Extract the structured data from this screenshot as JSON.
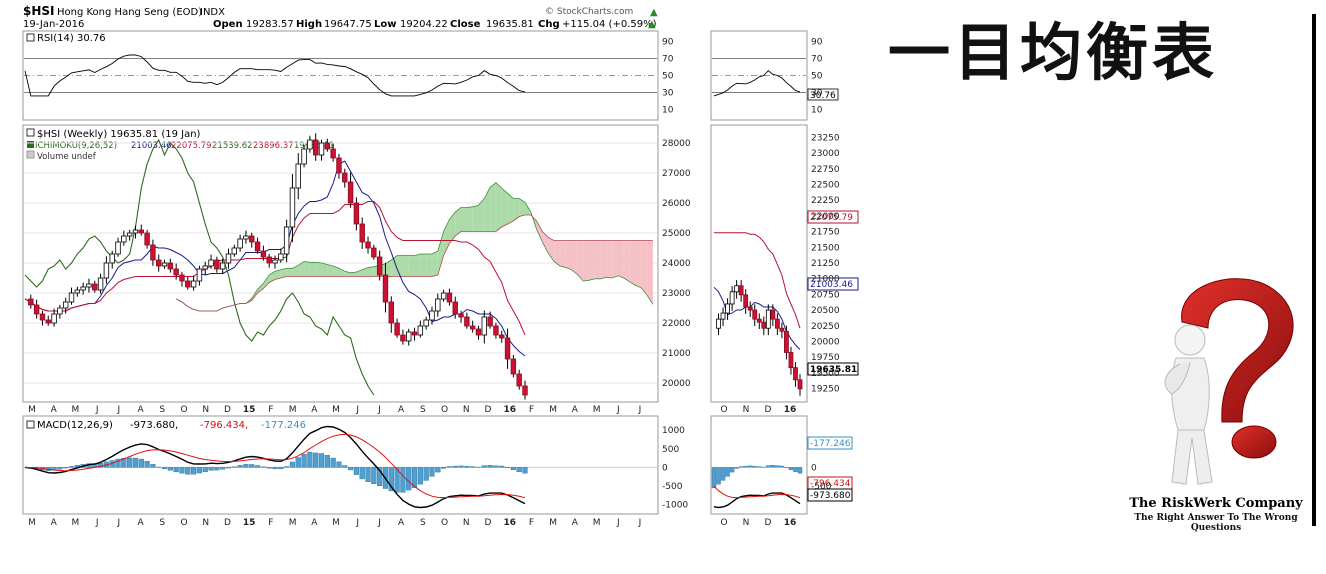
{
  "header": {
    "symbol": "$HSI",
    "name": "Hong Kong Hang Seng (EOD)",
    "exchange": "INDX",
    "date": "19-Jan-2016",
    "open_label": "Open",
    "open": "19283.57",
    "high_label": "High",
    "high": "19647.75",
    "low_label": "Low",
    "low": "19204.22",
    "close_label": "Close",
    "close": "19635.81",
    "chg_label": "Chg",
    "chg": "+115.04 (+0.59%)",
    "brand": "© StockCharts.com"
  },
  "rsi": {
    "legend": "RSI(14) 30.76",
    "value_box": "30.76",
    "ticks": [
      "90",
      "70",
      "50",
      "30",
      "10"
    ]
  },
  "price": {
    "legend_main": "$HSI (Weekly) 19635.81 (19 Jan)",
    "legend_ichi_name": "ICHIMOKU(9,26,52)",
    "legend_ichi_values": [
      "21003.46",
      "22075.79",
      "21539.62",
      "23896.37",
      "19635.81"
    ],
    "legend_volume": "Volume undef",
    "ticks_left": [
      "28000",
      "27000",
      "26000",
      "25000",
      "24000",
      "23000",
      "22000",
      "21000",
      "20000"
    ],
    "ticks_right": [
      "23250",
      "23000",
      "22750",
      "22500",
      "22250",
      "22000",
      "21750",
      "21500",
      "21250",
      "21000",
      "20750",
      "20500",
      "20250",
      "20000",
      "19750",
      "19500",
      "19250"
    ],
    "box_close": "19635.81",
    "box_kijun": "22075.79",
    "box_tenkan": "21003.46"
  },
  "macd": {
    "legend_name": "MACD(12,26,9)",
    "legend_macd": "-973.680,",
    "legend_signal": "-796.434,",
    "legend_hist": "-177.246",
    "ticks_left": [
      "1000",
      "500",
      "0",
      "-500",
      "-1000"
    ],
    "ticks_right": [
      "0",
      "-500"
    ],
    "box_hist": "-177.246",
    "box_signal": "-796.434",
    "box_macd": "-973.680"
  },
  "x_axis": {
    "left": [
      "M",
      "A",
      "M",
      "J",
      "J",
      "A",
      "S",
      "O",
      "N",
      "D",
      "15",
      "F",
      "M",
      "A",
      "M",
      "J",
      "J",
      "A",
      "S",
      "O",
      "N",
      "D",
      "16",
      "F",
      "M",
      "A",
      "M",
      "J",
      "J"
    ],
    "right": [
      "O",
      "N",
      "D",
      "16"
    ]
  },
  "title_kanji": "一目均衡表",
  "company": {
    "name": "The RiskWerk Company",
    "tagline": "The Right Answer To The Wrong Questions"
  },
  "colors": {
    "up": "#ffffff",
    "down": "#cc1133",
    "tenkan": "#1a1a8c",
    "kijun": "#bb1133",
    "chikou": "#2e6b1f",
    "cloud_bull": "#9fd39a",
    "cloud_bear": "#f2b6bd",
    "macd": "#000000",
    "signal": "#dd1111",
    "hist": "#4f9fd0"
  },
  "chart_data": {
    "type": "candlestick",
    "title": "$HSI (Weekly)",
    "last_date": "19-Jan-2016",
    "ohlc_last": {
      "open": 19283.57,
      "high": 19647.75,
      "low": 19204.22,
      "close": 19635.81
    },
    "series": [
      {
        "name": "ICHIMOKU(9,26,52)",
        "values": [
          21003.46,
          22075.79,
          21539.62,
          23896.37,
          19635.81
        ]
      },
      {
        "name": "RSI(14)",
        "values": [
          30.76
        ]
      },
      {
        "name": "MACD(12,26,9)",
        "values": [
          -973.68,
          -796.434,
          -177.246
        ]
      }
    ],
    "ylim_price_left": [
      19500,
      28500
    ],
    "ylim_price_right": [
      19100,
      23400
    ],
    "ylim_rsi": [
      0,
      100
    ],
    "ylim_macd": [
      -1200,
      1300
    ],
    "weekly_closes": [
      22800,
      22600,
      22300,
      22100,
      22000,
      22300,
      22500,
      22700,
      23000,
      23100,
      23200,
      23300,
      23100,
      23500,
      24000,
      24300,
      24700,
      24900,
      25000,
      25100,
      25000,
      24600,
      24100,
      23900,
      24000,
      23800,
      23600,
      23400,
      23200,
      23400,
      23800,
      23900,
      24100,
      23800,
      24000,
      24300,
      24500,
      24800,
      24900,
      24700,
      24400,
      24200,
      24000,
      24100,
      24300,
      25200,
      26500,
      27300,
      27800,
      28100,
      27600,
      28000,
      27800,
      27500,
      27000,
      26700,
      26000,
      25300,
      24700,
      24500,
      24200,
      23600,
      22700,
      22000,
      21600,
      21400,
      21700,
      21600,
      21900,
      22100,
      22400,
      22800,
      23000,
      22700,
      22300,
      22200,
      21900,
      21800,
      21600,
      22200,
      21900,
      21600,
      21500,
      20800,
      20300,
      19900,
      19600
    ]
  }
}
